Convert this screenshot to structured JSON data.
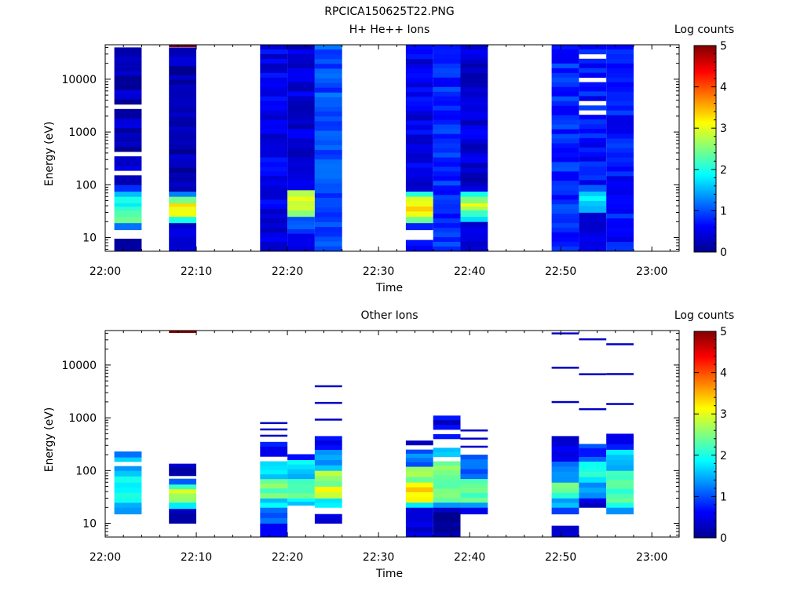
{
  "figure_title": "RPCICA150625T22.PNG",
  "chart_data": [
    {
      "type": "heatmap",
      "title": "H+ He++ Ions",
      "xlabel": "Time",
      "ylabel": "Energy (eV)",
      "y_scale": "log",
      "xlim": [
        "22:00",
        "23:03"
      ],
      "ylim": [
        5.5,
        45000
      ],
      "x_ticks": [
        "22:00",
        "22:10",
        "22:20",
        "22:30",
        "22:40",
        "22:50",
        "23:00"
      ],
      "y_ticks": [
        "10",
        "100",
        "1000",
        "10000"
      ],
      "colorbar": {
        "label": "Log counts",
        "range": [
          0,
          5
        ],
        "ticks": [
          "0",
          "1",
          "2",
          "3",
          "4",
          "5"
        ]
      },
      "sweeps": [
        {
          "t_start": "22:01",
          "t_end": "22:04",
          "e_top": 40000,
          "cells": [
            {
              "e_min": 5.5,
              "e_max": 9.5,
              "log_counts": 0.2
            },
            {
              "e_min": 14,
              "e_max": 19,
              "log_counts": 1.4
            },
            {
              "e_min": 19,
              "e_max": 25,
              "log_counts": 2.3
            },
            {
              "e_min": 25,
              "e_max": 33,
              "log_counts": 2.1
            },
            {
              "e_min": 33,
              "e_max": 45,
              "log_counts": 2.0
            },
            {
              "e_min": 45,
              "e_max": 60,
              "log_counts": 2.2
            },
            {
              "e_min": 60,
              "e_max": 75,
              "log_counts": 1.7
            },
            {
              "e_min": 75,
              "e_max": 100,
              "log_counts": 0.7
            },
            {
              "e_min": 100,
              "e_max": 40000,
              "log_counts": 0.25
            }
          ]
        },
        {
          "t_start": "22:07",
          "t_end": "22:10",
          "e_top": 40000,
          "cells": [
            {
              "e_min": 5.5,
              "e_max": 19,
              "log_counts": 0.4
            },
            {
              "e_min": 19,
              "e_max": 25,
              "log_counts": 2.2
            },
            {
              "e_min": 25,
              "e_max": 33,
              "log_counts": 3.0
            },
            {
              "e_min": 33,
              "e_max": 45,
              "log_counts": 3.1
            },
            {
              "e_min": 45,
              "e_max": 60,
              "log_counts": 2.4
            },
            {
              "e_min": 60,
              "e_max": 75,
              "log_counts": 1.2
            },
            {
              "e_min": 75,
              "e_max": 40000,
              "log_counts": 0.2
            }
          ]
        },
        {
          "t_start": "22:17",
          "t_end": "22:20",
          "e_top": 45000,
          "cells": [
            {
              "e_min": 5.5,
              "e_max": 45000,
              "log_counts": 0.5
            }
          ]
        },
        {
          "t_start": "22:20",
          "t_end": "22:23",
          "e_top": 45000,
          "cells": [
            {
              "e_min": 5.5,
              "e_max": 12,
              "log_counts": 0.6
            },
            {
              "e_min": 12,
              "e_max": 25,
              "log_counts": 0.9
            },
            {
              "e_min": 25,
              "e_max": 33,
              "log_counts": 2.5
            },
            {
              "e_min": 33,
              "e_max": 60,
              "log_counts": 3.0
            },
            {
              "e_min": 60,
              "e_max": 80,
              "log_counts": 2.6
            },
            {
              "e_min": 80,
              "e_max": 45000,
              "log_counts": 0.4
            }
          ]
        },
        {
          "t_start": "22:23",
          "t_end": "22:26",
          "e_top": 45000,
          "cells": [
            {
              "e_min": 5.5,
              "e_max": 70,
              "log_counts": 0.9
            },
            {
              "e_min": 70,
              "e_max": 45000,
              "log_counts": 1.0
            }
          ]
        },
        {
          "t_start": "22:33",
          "t_end": "22:36",
          "e_top": 45000,
          "cells": [
            {
              "e_min": 5.5,
              "e_max": 9,
              "log_counts": 0.8
            },
            {
              "e_min": 14,
              "e_max": 19,
              "log_counts": 1.0
            },
            {
              "e_min": 19,
              "e_max": 25,
              "log_counts": 2.2
            },
            {
              "e_min": 25,
              "e_max": 60,
              "log_counts": 3.2
            },
            {
              "e_min": 60,
              "e_max": 75,
              "log_counts": 2.2
            },
            {
              "e_min": 75,
              "e_max": 45000,
              "log_counts": 0.5
            }
          ]
        },
        {
          "t_start": "22:36",
          "t_end": "22:39",
          "e_top": 45000,
          "cells": [
            {
              "e_min": 5.5,
              "e_max": 45000,
              "log_counts": 0.8
            }
          ]
        },
        {
          "t_start": "22:39",
          "t_end": "22:42",
          "e_top": 45000,
          "cells": [
            {
              "e_min": 5.5,
              "e_max": 20,
              "log_counts": 0.4
            },
            {
              "e_min": 20,
              "e_max": 25,
              "log_counts": 1.6
            },
            {
              "e_min": 25,
              "e_max": 33,
              "log_counts": 2.4
            },
            {
              "e_min": 33,
              "e_max": 45,
              "log_counts": 2.9
            },
            {
              "e_min": 45,
              "e_max": 60,
              "log_counts": 2.6
            },
            {
              "e_min": 60,
              "e_max": 75,
              "log_counts": 1.9
            },
            {
              "e_min": 75,
              "e_max": 45000,
              "log_counts": 0.4
            }
          ]
        },
        {
          "t_start": "22:49",
          "t_end": "22:52",
          "e_top": 45000,
          "cells": [
            {
              "e_min": 5.5,
              "e_max": 45000,
              "log_counts": 0.8
            }
          ]
        },
        {
          "t_start": "22:52",
          "t_end": "22:55",
          "e_top": 45000,
          "cells": [
            {
              "e_min": 5.5,
              "e_max": 30,
              "log_counts": 0.4
            },
            {
              "e_min": 30,
              "e_max": 40,
              "log_counts": 1.5
            },
            {
              "e_min": 40,
              "e_max": 75,
              "log_counts": 1.7
            },
            {
              "e_min": 75,
              "e_max": 100,
              "log_counts": 1.0
            },
            {
              "e_min": 100,
              "e_max": 45000,
              "log_counts": 0.7
            }
          ]
        },
        {
          "t_start": "22:55",
          "t_end": "22:58",
          "e_top": 45000,
          "cells": [
            {
              "e_min": 5.5,
              "e_max": 45000,
              "log_counts": 0.7
            }
          ]
        }
      ],
      "top_marks": [
        {
          "t_start": "22:07",
          "t_end": "22:10",
          "log_counts": 5.0
        }
      ]
    },
    {
      "type": "heatmap",
      "title": "Other Ions",
      "xlabel": "Time",
      "ylabel": "Energy (eV)",
      "y_scale": "log",
      "xlim": [
        "22:00",
        "23:03"
      ],
      "ylim": [
        5.5,
        45000
      ],
      "x_ticks": [
        "22:00",
        "22:10",
        "22:20",
        "22:30",
        "22:40",
        "22:50",
        "23:00"
      ],
      "y_ticks": [
        "10",
        "100",
        "1000",
        "10000"
      ],
      "colorbar": {
        "label": "Log counts",
        "range": [
          0,
          5
        ],
        "ticks": [
          "0",
          "1",
          "2",
          "3",
          "4",
          "5"
        ]
      },
      "sweeps": [
        {
          "t_start": "22:01",
          "t_end": "22:04",
          "e_top": 230,
          "cells": [
            {
              "e_min": 15,
              "e_max": 20,
              "log_counts": 1.3
            },
            {
              "e_min": 20,
              "e_max": 30,
              "log_counts": 1.7
            },
            {
              "e_min": 30,
              "e_max": 60,
              "log_counts": 2.0
            },
            {
              "e_min": 60,
              "e_max": 100,
              "log_counts": 1.8
            },
            {
              "e_min": 100,
              "e_max": 180,
              "log_counts": 1.5
            },
            {
              "e_min": 180,
              "e_max": 230,
              "log_counts": 1.0
            }
          ]
        },
        {
          "t_start": "22:07",
          "t_end": "22:10",
          "e_top": 135,
          "cells": [
            {
              "e_min": 10,
              "e_max": 19,
              "log_counts": 0.2
            },
            {
              "e_min": 19,
              "e_max": 25,
              "log_counts": 1.8
            },
            {
              "e_min": 25,
              "e_max": 45,
              "log_counts": 2.8
            },
            {
              "e_min": 45,
              "e_max": 55,
              "log_counts": 2.0
            },
            {
              "e_min": 55,
              "e_max": 70,
              "log_counts": 1.0
            },
            {
              "e_min": 80,
              "e_max": 135,
              "log_counts": 0.2
            }
          ]
        },
        {
          "t_start": "22:17",
          "t_end": "22:20",
          "e_top": 800,
          "cells": [
            {
              "e_min": 5.5,
              "e_max": 10,
              "log_counts": 0.5
            },
            {
              "e_min": 10,
              "e_max": 20,
              "log_counts": 1.0
            },
            {
              "e_min": 20,
              "e_max": 30,
              "log_counts": 1.8
            },
            {
              "e_min": 30,
              "e_max": 70,
              "log_counts": 2.4
            },
            {
              "e_min": 70,
              "e_max": 150,
              "log_counts": 1.7
            },
            {
              "e_min": 150,
              "e_max": 350,
              "log_counts": 0.6
            }
          ]
        },
        {
          "t_start": "22:20",
          "t_end": "22:23",
          "e_top": 260,
          "cells": [
            {
              "e_min": 22,
              "e_max": 30,
              "log_counts": 1.8
            },
            {
              "e_min": 30,
              "e_max": 70,
              "log_counts": 2.4
            },
            {
              "e_min": 70,
              "e_max": 160,
              "log_counts": 1.7
            },
            {
              "e_min": 160,
              "e_max": 260,
              "log_counts": 0.6
            }
          ]
        },
        {
          "t_start": "22:23",
          "t_end": "22:26",
          "e_top": 4000,
          "cells": [
            {
              "e_min": 10,
              "e_max": 15,
              "log_counts": 0.4
            },
            {
              "e_min": 20,
              "e_max": 30,
              "log_counts": 1.8
            },
            {
              "e_min": 30,
              "e_max": 50,
              "log_counts": 3.0
            },
            {
              "e_min": 50,
              "e_max": 100,
              "log_counts": 2.6
            },
            {
              "e_min": 100,
              "e_max": 250,
              "log_counts": 1.5
            },
            {
              "e_min": 250,
              "e_max": 450,
              "log_counts": 0.5
            }
          ]
        },
        {
          "t_start": "22:33",
          "t_end": "22:36",
          "e_top": 450,
          "cells": [
            {
              "e_min": 5.5,
              "e_max": 20,
              "log_counts": 0.3
            },
            {
              "e_min": 20,
              "e_max": 25,
              "log_counts": 1.6
            },
            {
              "e_min": 25,
              "e_max": 60,
              "log_counts": 3.2
            },
            {
              "e_min": 60,
              "e_max": 120,
              "log_counts": 2.5
            },
            {
              "e_min": 120,
              "e_max": 250,
              "log_counts": 1.2
            },
            {
              "e_min": 250,
              "e_max": 450,
              "log_counts": 0.3
            }
          ]
        },
        {
          "t_start": "22:36",
          "t_end": "22:39",
          "e_top": 1100,
          "cells": [
            {
              "e_min": 5.5,
              "e_max": 20,
              "log_counts": 0.2
            },
            {
              "e_min": 20,
              "e_max": 25,
              "log_counts": 1.2
            },
            {
              "e_min": 25,
              "e_max": 150,
              "log_counts": 2.5
            },
            {
              "e_min": 150,
              "e_max": 400,
              "log_counts": 1.5
            },
            {
              "e_min": 400,
              "e_max": 1100,
              "log_counts": 0.5
            }
          ]
        },
        {
          "t_start": "22:39",
          "t_end": "22:42",
          "e_top": 580,
          "cells": [
            {
              "e_min": 15,
              "e_max": 20,
              "log_counts": 0.4
            },
            {
              "e_min": 20,
              "e_max": 25,
              "log_counts": 1.4
            },
            {
              "e_min": 25,
              "e_max": 70,
              "log_counts": 2.3
            },
            {
              "e_min": 70,
              "e_max": 200,
              "log_counts": 1.2
            }
          ]
        },
        {
          "t_start": "22:49",
          "t_end": "22:52",
          "e_top": 40000,
          "cells": [
            {
              "e_min": 5.5,
              "e_max": 9,
              "log_counts": 0.2
            },
            {
              "e_min": 15,
              "e_max": 20,
              "log_counts": 0.8
            },
            {
              "e_min": 20,
              "e_max": 30,
              "log_counts": 1.6
            },
            {
              "e_min": 30,
              "e_max": 60,
              "log_counts": 2.3
            },
            {
              "e_min": 60,
              "e_max": 150,
              "log_counts": 1.2
            },
            {
              "e_min": 150,
              "e_max": 450,
              "log_counts": 0.4
            }
          ]
        },
        {
          "t_start": "22:52",
          "t_end": "22:55",
          "e_top": 31000,
          "cells": [
            {
              "e_min": 20,
              "e_max": 30,
              "log_counts": 0.4
            },
            {
              "e_min": 30,
              "e_max": 60,
              "log_counts": 1.5
            },
            {
              "e_min": 60,
              "e_max": 150,
              "log_counts": 1.9
            },
            {
              "e_min": 150,
              "e_max": 320,
              "log_counts": 0.9
            }
          ]
        },
        {
          "t_start": "22:55",
          "t_end": "22:58",
          "e_top": 25000,
          "cells": [
            {
              "e_min": 15,
              "e_max": 20,
              "log_counts": 1.2
            },
            {
              "e_min": 20,
              "e_max": 100,
              "log_counts": 2.2
            },
            {
              "e_min": 100,
              "e_max": 250,
              "log_counts": 1.6
            },
            {
              "e_min": 250,
              "e_max": 500,
              "log_counts": 0.6
            }
          ]
        }
      ],
      "top_marks": [
        {
          "t_start": "22:07",
          "t_end": "22:10",
          "log_counts": 5.0
        }
      ]
    }
  ]
}
